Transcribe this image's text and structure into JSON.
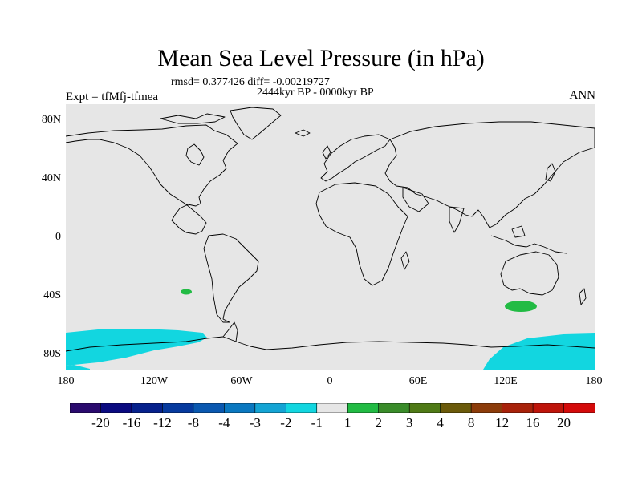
{
  "title": "Mean Sea Level Pressure (in hPa)",
  "stats_line": "rmsd= 0.377426 diff= -0.00219727",
  "period_line": "2444kyr BP - 0000kyr BP",
  "experiment_label": "Expt = tfMfj-tfmea",
  "season_label": "ANN",
  "lat_labels": [
    "80N",
    "40N",
    "0",
    "40S",
    "80S"
  ],
  "lon_labels": [
    "180",
    "120W",
    "60W",
    "0",
    "60E",
    "120E",
    "180"
  ],
  "colorbar": {
    "labels": [
      "-20",
      "-16",
      "-12",
      "-8",
      "-4",
      "-3",
      "-2",
      "-1",
      "1",
      "2",
      "3",
      "4",
      "8",
      "12",
      "16",
      "20"
    ],
    "colors": [
      "#2a0a6e",
      "#0a0a80",
      "#06218c",
      "#063a9e",
      "#0a58b0",
      "#0a78c0",
      "#14a4d4",
      "#12d6e0",
      "#e6e6e6",
      "#22bb44",
      "#3a8c2a",
      "#4f7a16",
      "#6b5a0a",
      "#8c3c0a",
      "#a8220a",
      "#be140a",
      "#d40a0a"
    ]
  },
  "colors": {
    "background_field": "#e6e6e6",
    "negative_anomaly": "#12d6e0",
    "positive_anomaly": "#22bb44"
  }
}
